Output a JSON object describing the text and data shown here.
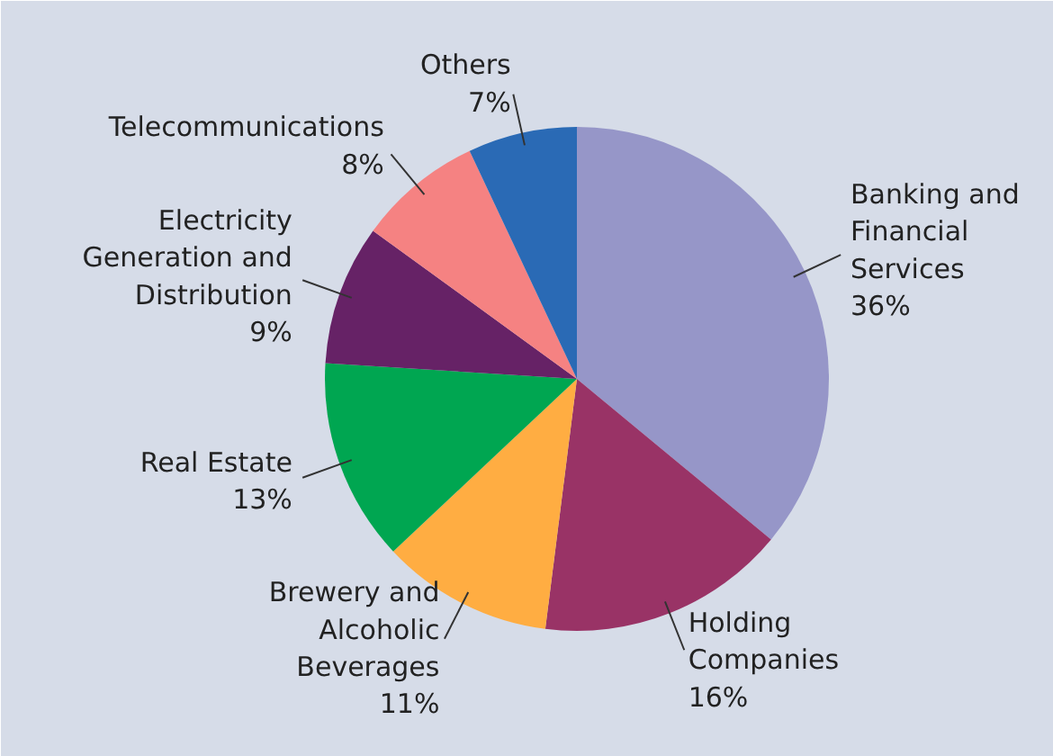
{
  "chart_data": {
    "type": "pie",
    "categories": [
      "Banking and Financial Services",
      "Holding Companies",
      "Brewery and Alcoholic Beverages",
      "Real Estate",
      "Electricity Generation and Distribution",
      "Telecommunications",
      "Others"
    ],
    "values": [
      36,
      16,
      11,
      13,
      9,
      8,
      7
    ],
    "value_labels": [
      "36%",
      "16%",
      "11%",
      "13%",
      "9%",
      "8%",
      "7%"
    ],
    "colors": [
      "#9696c8",
      "#993366",
      "#ffad42",
      "#00a651",
      "#662266",
      "#f58282",
      "#2a6ab5"
    ]
  }
}
